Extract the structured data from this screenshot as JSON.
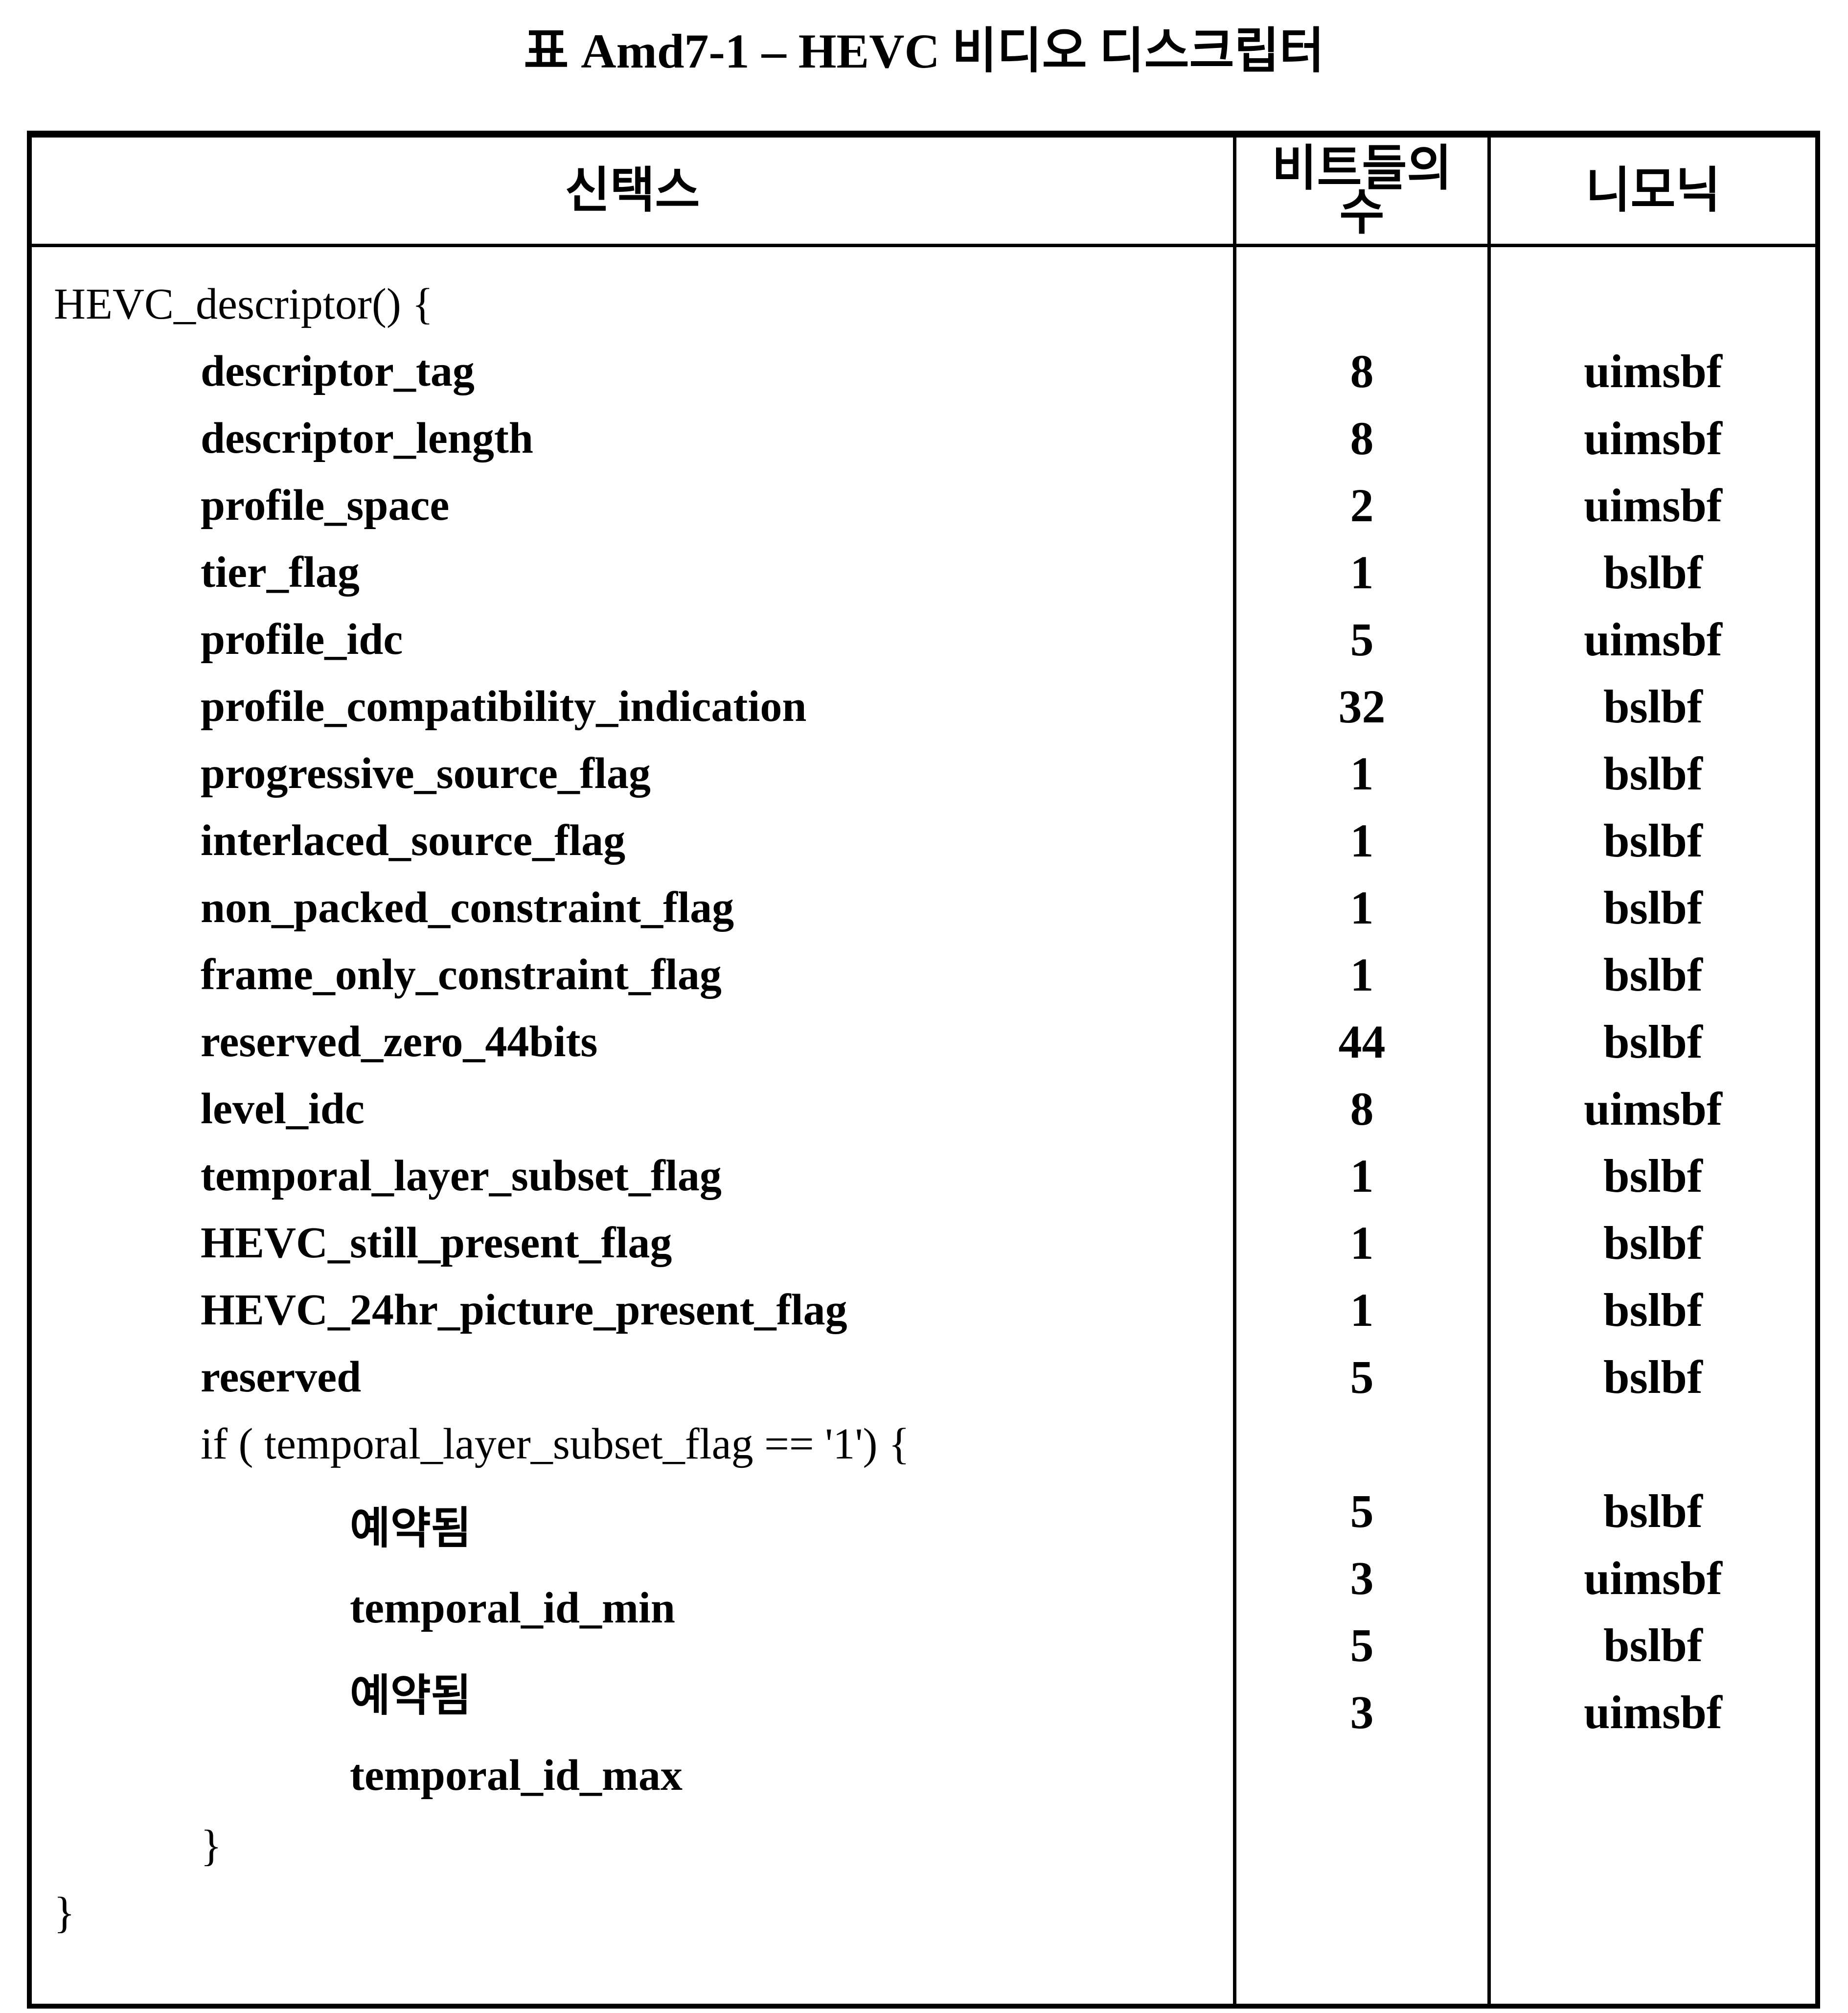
{
  "title": "표 Amd7-1 – HEVC 비디오 디스크립터",
  "table": {
    "headers": {
      "syntax": "신택스",
      "num_bits_line1": "비트들의",
      "num_bits_line2": "수",
      "mnemonic": "니모닉"
    },
    "syntax_lines": [
      {
        "text": "HEVC_descriptor() {",
        "indent": 0,
        "bold": false
      },
      {
        "text": "descriptor_tag",
        "indent": 1,
        "bold": true
      },
      {
        "text": "descriptor_length",
        "indent": 1,
        "bold": true
      },
      {
        "text": "profile_space",
        "indent": 1,
        "bold": true
      },
      {
        "text": "tier_flag",
        "indent": 1,
        "bold": true
      },
      {
        "text": "profile_idc",
        "indent": 1,
        "bold": true
      },
      {
        "text": "profile_compatibility_indication",
        "indent": 1,
        "bold": true
      },
      {
        "text": "progressive_source_flag",
        "indent": 1,
        "bold": true
      },
      {
        "text": "interlaced_source_flag",
        "indent": 1,
        "bold": true
      },
      {
        "text": "non_packed_constraint_flag",
        "indent": 1,
        "bold": true
      },
      {
        "text": "frame_only_constraint_flag",
        "indent": 1,
        "bold": true
      },
      {
        "text": "reserved_zero_44bits",
        "indent": 1,
        "bold": true
      },
      {
        "text": "level_idc",
        "indent": 1,
        "bold": true
      },
      {
        "text": "temporal_layer_subset_flag",
        "indent": 1,
        "bold": true
      },
      {
        "text": "HEVC_still_present_flag",
        "indent": 1,
        "bold": true
      },
      {
        "text": "HEVC_24hr_picture_present_flag",
        "indent": 1,
        "bold": true
      },
      {
        "text": "reserved",
        "indent": 1,
        "bold": true
      },
      {
        "text": "if ( temporal_layer_subset_flag == '1') {",
        "indent": 1,
        "bold": false
      },
      {
        "text": "예약됨",
        "indent": 2,
        "bold": true
      },
      {
        "text": "temporal_id_min",
        "indent": 2,
        "bold": true
      },
      {
        "text": "예약됨",
        "indent": 2,
        "bold": true
      },
      {
        "text": "temporal_id_max",
        "indent": 2,
        "bold": true
      },
      {
        "text": "}",
        "indent": 1,
        "bold": false
      },
      {
        "text": "}",
        "indent": 0,
        "bold": false
      }
    ],
    "bits_lines": [
      "",
      "8",
      "8",
      "2",
      "1",
      "5",
      "32",
      "1",
      "1",
      "1",
      "1",
      "44",
      "8",
      "1",
      "1",
      "1",
      "5",
      "",
      "5",
      "3",
      "5",
      "3"
    ],
    "mnemonic_lines": [
      "",
      "uimsbf",
      "uimsbf",
      "uimsbf",
      "bslbf",
      "uimsbf",
      "bslbf",
      "bslbf",
      "bslbf",
      "bslbf",
      "bslbf",
      "bslbf",
      "uimsbf",
      "bslbf",
      "bslbf",
      "bslbf",
      "bslbf",
      "",
      "bslbf",
      "uimsbf",
      "bslbf",
      "uimsbf"
    ]
  }
}
